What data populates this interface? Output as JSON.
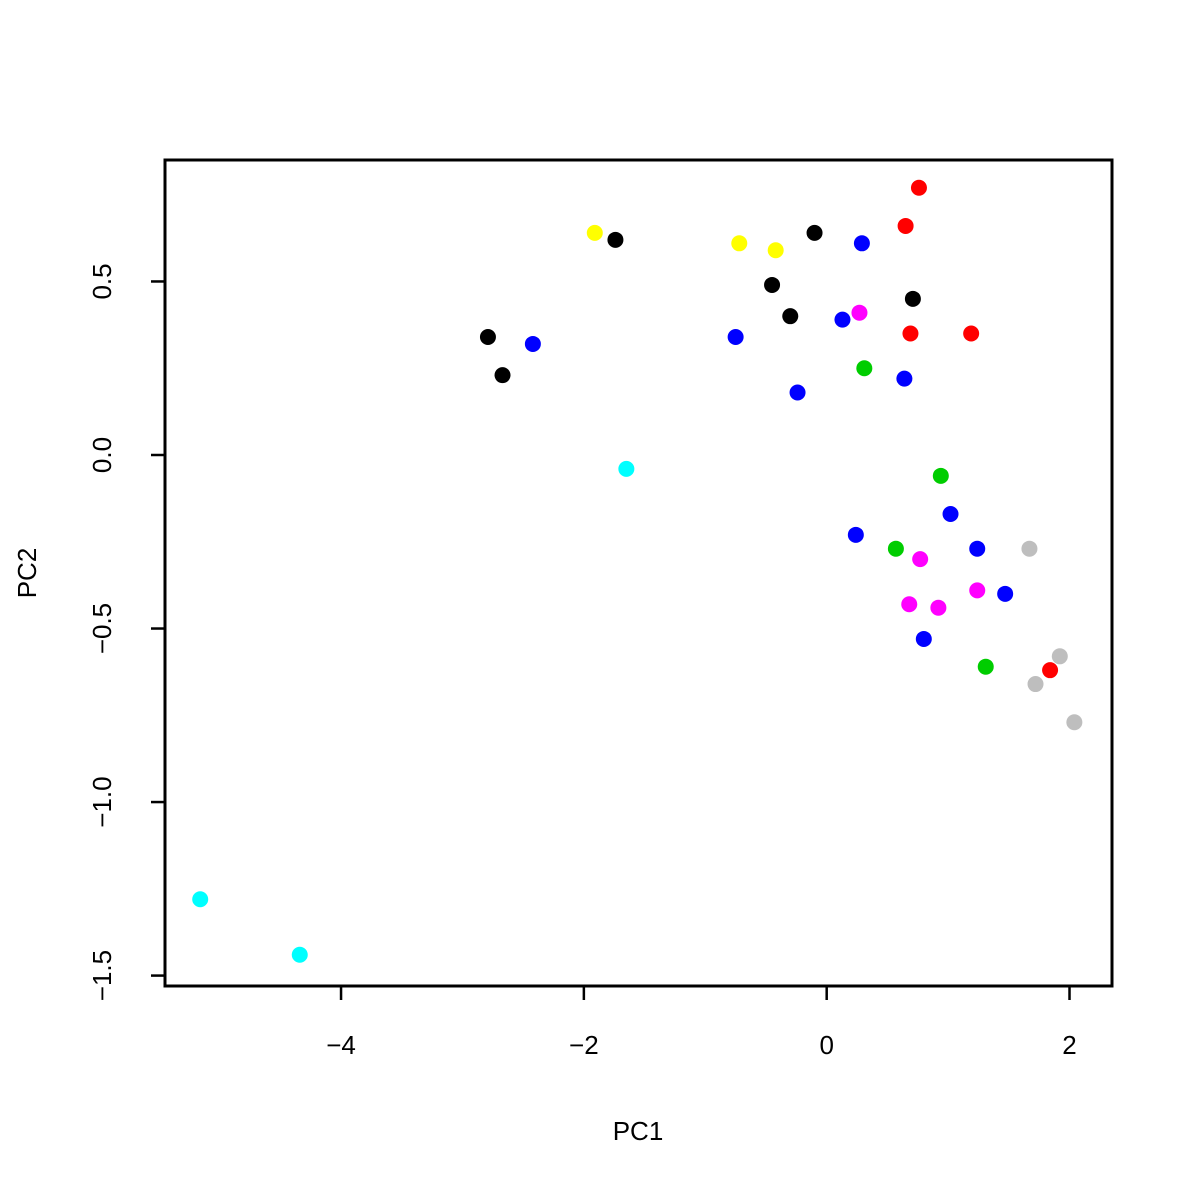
{
  "chart_data": {
    "type": "scatter",
    "title": "",
    "xlabel": "PC1",
    "ylabel": "PC2",
    "xlim": [
      -5.45,
      2.35
    ],
    "ylim": [
      -1.53,
      0.85
    ],
    "xticks": [
      -4,
      -2,
      0,
      2
    ],
    "yticks": [
      -1.5,
      -1.0,
      -0.5,
      0.0,
      0.5
    ],
    "xtick_labels": [
      "−4",
      "−2",
      "0",
      "2"
    ],
    "ytick_labels": [
      "−1.5",
      "−1.0",
      "−0.5",
      "0.0",
      "0.5"
    ],
    "grid": false,
    "legend": false,
    "points": [
      {
        "x": 0.76,
        "y": 0.77,
        "color": "#ff0000"
      },
      {
        "x": 0.65,
        "y": 0.66,
        "color": "#ff0000"
      },
      {
        "x": 0.69,
        "y": 0.35,
        "color": "#ff0000"
      },
      {
        "x": 1.19,
        "y": 0.35,
        "color": "#ff0000"
      },
      {
        "x": 1.84,
        "y": -0.62,
        "color": "#ff0000"
      },
      {
        "x": -1.91,
        "y": 0.64,
        "color": "#ffff00"
      },
      {
        "x": -0.72,
        "y": 0.61,
        "color": "#ffff00"
      },
      {
        "x": -0.42,
        "y": 0.59,
        "color": "#ffff00"
      },
      {
        "x": -1.74,
        "y": 0.62,
        "color": "#000000"
      },
      {
        "x": -0.1,
        "y": 0.64,
        "color": "#000000"
      },
      {
        "x": -0.45,
        "y": 0.49,
        "color": "#000000"
      },
      {
        "x": -0.3,
        "y": 0.4,
        "color": "#000000"
      },
      {
        "x": 0.71,
        "y": 0.45,
        "color": "#000000"
      },
      {
        "x": -2.79,
        "y": 0.34,
        "color": "#000000"
      },
      {
        "x": -2.67,
        "y": 0.23,
        "color": "#000000"
      },
      {
        "x": -2.42,
        "y": 0.32,
        "color": "#0000ff"
      },
      {
        "x": 0.29,
        "y": 0.61,
        "color": "#0000ff"
      },
      {
        "x": 0.13,
        "y": 0.39,
        "color": "#0000ff"
      },
      {
        "x": -0.75,
        "y": 0.34,
        "color": "#0000ff"
      },
      {
        "x": -0.24,
        "y": 0.18,
        "color": "#0000ff"
      },
      {
        "x": 0.64,
        "y": 0.22,
        "color": "#0000ff"
      },
      {
        "x": 1.02,
        "y": -0.17,
        "color": "#0000ff"
      },
      {
        "x": 0.24,
        "y": -0.23,
        "color": "#0000ff"
      },
      {
        "x": 1.24,
        "y": -0.27,
        "color": "#0000ff"
      },
      {
        "x": 1.47,
        "y": -0.4,
        "color": "#0000ff"
      },
      {
        "x": 0.8,
        "y": -0.53,
        "color": "#0000ff"
      },
      {
        "x": 0.27,
        "y": 0.41,
        "color": "#ff00ff"
      },
      {
        "x": 0.77,
        "y": -0.3,
        "color": "#ff00ff"
      },
      {
        "x": 1.24,
        "y": -0.39,
        "color": "#ff00ff"
      },
      {
        "x": 0.68,
        "y": -0.43,
        "color": "#ff00ff"
      },
      {
        "x": 0.92,
        "y": -0.44,
        "color": "#ff00ff"
      },
      {
        "x": 0.31,
        "y": 0.25,
        "color": "#00cd00"
      },
      {
        "x": 0.94,
        "y": -0.06,
        "color": "#00cd00"
      },
      {
        "x": 0.57,
        "y": -0.27,
        "color": "#00cd00"
      },
      {
        "x": 1.31,
        "y": -0.61,
        "color": "#00cd00"
      },
      {
        "x": 1.67,
        "y": -0.27,
        "color": "#bebebe"
      },
      {
        "x": 1.92,
        "y": -0.58,
        "color": "#bebebe"
      },
      {
        "x": 1.72,
        "y": -0.66,
        "color": "#bebebe"
      },
      {
        "x": 2.04,
        "y": -0.77,
        "color": "#bebebe"
      },
      {
        "x": -1.65,
        "y": -0.04,
        "color": "#00ffff"
      },
      {
        "x": -5.16,
        "y": -1.28,
        "color": "#00ffff"
      },
      {
        "x": -4.34,
        "y": -1.44,
        "color": "#00ffff"
      }
    ]
  }
}
